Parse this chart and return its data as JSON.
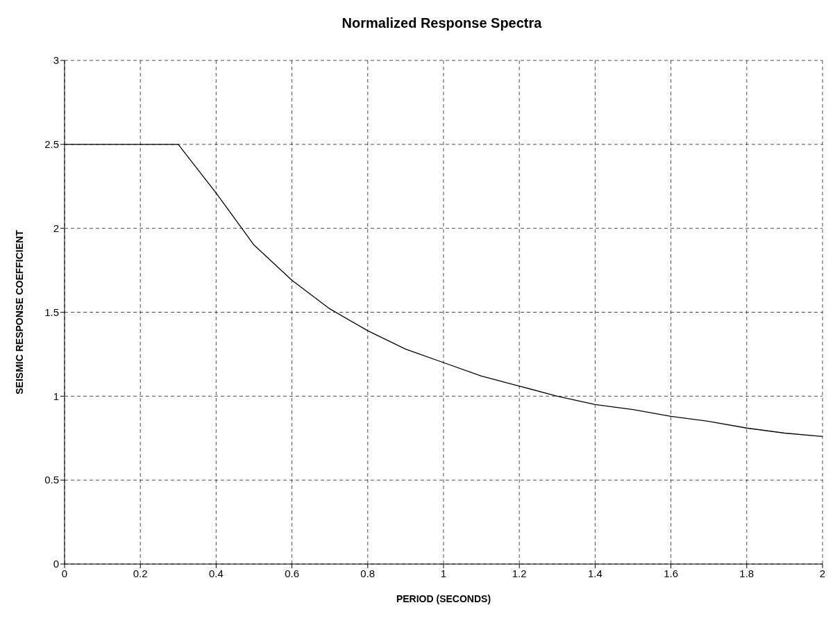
{
  "chart_data": {
    "type": "line",
    "title": "Normalized Response Spectra",
    "xlabel": "PERIOD (SECONDS)",
    "ylabel": "SEISMIC RESPONSE COEFFICIENT",
    "x": [
      0,
      0.3,
      0.4,
      0.5,
      0.6,
      0.7,
      0.8,
      0.9,
      1.0,
      1.1,
      1.2,
      1.3,
      1.4,
      1.5,
      1.6,
      1.7,
      1.8,
      1.9,
      2.0
    ],
    "series": [
      {
        "color": "#000000",
        "values": [
          2.5,
          2.5,
          2.21,
          1.9,
          1.69,
          1.52,
          1.39,
          1.28,
          1.2,
          1.12,
          1.06,
          1.0,
          0.95,
          0.92,
          0.88,
          0.85,
          0.81,
          0.78,
          0.76
        ]
      }
    ],
    "xlim": [
      0,
      2
    ],
    "xticks": [
      0,
      0.2,
      0.4,
      0.6,
      0.8,
      1,
      1.2,
      1.4,
      1.6,
      1.8,
      2
    ],
    "ylim": [
      0,
      3
    ],
    "yticks": [
      0,
      0.5,
      1,
      1.5,
      2,
      2.5,
      3
    ],
    "grid": true,
    "marker": "none",
    "line_style": "solid",
    "legend": false
  }
}
